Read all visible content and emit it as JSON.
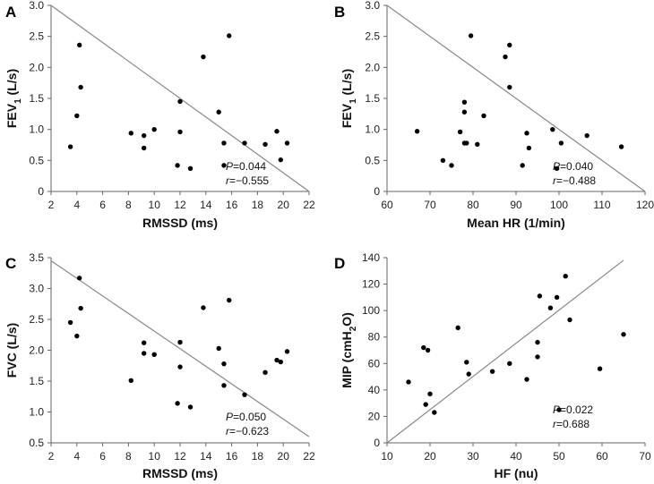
{
  "chart_data": [
    {
      "panel": "A",
      "type": "scatter",
      "xlabel": "RMSSD (ms)",
      "ylabel_main": "FEV",
      "ylabel_sub": "1",
      "ylabel_tail": " (L/s)",
      "xlim": [
        2,
        22
      ],
      "ylim": [
        0,
        3.0
      ],
      "xticks": [
        "2",
        "4",
        "6",
        "8",
        "10",
        "12",
        "14",
        "16",
        "18",
        "20",
        "22"
      ],
      "yticks": [
        "0",
        "0.5",
        "1.0",
        "1.5",
        "2.0",
        "2.5",
        "3.0"
      ],
      "stat_p": "=0.044",
      "stat_r": "=−0.555",
      "fit_line": [
        [
          2,
          3.0
        ],
        [
          22,
          0
        ]
      ],
      "points": [
        [
          3.5,
          0.72
        ],
        [
          4.0,
          1.22
        ],
        [
          4.2,
          2.36
        ],
        [
          4.3,
          1.68
        ],
        [
          8.2,
          0.94
        ],
        [
          9.2,
          0.9
        ],
        [
          9.2,
          0.7
        ],
        [
          10.0,
          1.0
        ],
        [
          11.8,
          0.42
        ],
        [
          12.0,
          0.96
        ],
        [
          12.0,
          1.45
        ],
        [
          12.8,
          0.37
        ],
        [
          13.8,
          2.17
        ],
        [
          15.0,
          1.28
        ],
        [
          15.4,
          0.78
        ],
        [
          15.4,
          0.42
        ],
        [
          15.8,
          2.51
        ],
        [
          17.0,
          0.78
        ],
        [
          18.6,
          0.76
        ],
        [
          19.5,
          0.97
        ],
        [
          19.8,
          0.51
        ],
        [
          20.3,
          0.78
        ]
      ]
    },
    {
      "panel": "B",
      "type": "scatter",
      "xlabel": "Mean HR (1/min)",
      "ylabel_main": "FEV",
      "ylabel_sub": "1",
      "ylabel_tail": " (L/s)",
      "xlim": [
        60,
        120
      ],
      "ylim": [
        0,
        3.0
      ],
      "xticks": [
        "60",
        "70",
        "80",
        "90",
        "100",
        "110",
        "120"
      ],
      "yticks": [
        "0",
        "0.5",
        "1.0",
        "1.5",
        "2.0",
        "2.5",
        "3.0"
      ],
      "stat_p": "=0.040",
      "stat_r": "=−0.488",
      "fit_line": [
        [
          60,
          3.0
        ],
        [
          120,
          0
        ]
      ],
      "points": [
        [
          67.0,
          0.97
        ],
        [
          73.0,
          0.5
        ],
        [
          75.0,
          0.42
        ],
        [
          77.0,
          0.96
        ],
        [
          78.0,
          1.44
        ],
        [
          78.0,
          1.28
        ],
        [
          78.0,
          0.78
        ],
        [
          78.5,
          0.78
        ],
        [
          79.5,
          2.51
        ],
        [
          81.0,
          0.76
        ],
        [
          82.5,
          1.22
        ],
        [
          87.5,
          2.17
        ],
        [
          88.5,
          2.36
        ],
        [
          88.5,
          1.68
        ],
        [
          91.5,
          0.42
        ],
        [
          92.5,
          0.94
        ],
        [
          93.0,
          0.7
        ],
        [
          98.5,
          1.0
        ],
        [
          99.5,
          0.37
        ],
        [
          100.5,
          0.78
        ],
        [
          106.5,
          0.9
        ],
        [
          114.5,
          0.72
        ]
      ]
    },
    {
      "panel": "C",
      "type": "scatter",
      "xlabel": "RMSSD (ms)",
      "ylabel_main": "FVC (L/s)",
      "ylabel_sub": "",
      "ylabel_tail": "",
      "xlim": [
        2,
        22
      ],
      "ylim": [
        0.5,
        3.5
      ],
      "xticks": [
        "2",
        "4",
        "6",
        "8",
        "10",
        "12",
        "14",
        "16",
        "18",
        "20",
        "22"
      ],
      "yticks": [
        "0.5",
        "1.0",
        "1.5",
        "2.0",
        "2.5",
        "3.0",
        "3.5"
      ],
      "stat_p": "=0.050",
      "stat_r": "=−0.623",
      "fit_line": [
        [
          2,
          3.45
        ],
        [
          22,
          0.6
        ]
      ],
      "points": [
        [
          3.5,
          2.45
        ],
        [
          4.0,
          2.23
        ],
        [
          4.2,
          3.17
        ],
        [
          4.3,
          2.68
        ],
        [
          8.2,
          1.51
        ],
        [
          9.2,
          2.12
        ],
        [
          9.2,
          1.95
        ],
        [
          10.0,
          1.93
        ],
        [
          11.8,
          1.14
        ],
        [
          12.0,
          1.73
        ],
        [
          12.0,
          2.13
        ],
        [
          12.8,
          1.08
        ],
        [
          13.8,
          2.69
        ],
        [
          15.0,
          2.03
        ],
        [
          15.4,
          1.78
        ],
        [
          15.4,
          1.43
        ],
        [
          15.8,
          2.81
        ],
        [
          17.0,
          1.28
        ],
        [
          18.6,
          1.64
        ],
        [
          19.5,
          1.84
        ],
        [
          19.8,
          1.81
        ],
        [
          20.3,
          1.98
        ]
      ]
    },
    {
      "panel": "D",
      "type": "scatter",
      "xlabel": "HF (nu)",
      "ylabel_main": "MIP (cmH",
      "ylabel_sub": "2",
      "ylabel_tail": "O)",
      "xlim": [
        10,
        70
      ],
      "ylim": [
        0,
        140
      ],
      "xticks": [
        "10",
        "20",
        "30",
        "40",
        "50",
        "60",
        "70"
      ],
      "yticks": [
        "0",
        "20",
        "40",
        "60",
        "80",
        "100",
        "120",
        "140"
      ],
      "stat_p": "=0.022",
      "stat_r": "=0.688",
      "fit_line": [
        [
          10,
          0
        ],
        [
          65,
          138
        ]
      ],
      "points": [
        [
          15.0,
          46
        ],
        [
          18.5,
          72
        ],
        [
          19.0,
          29
        ],
        [
          19.5,
          70
        ],
        [
          20.0,
          37
        ],
        [
          21.0,
          23
        ],
        [
          26.5,
          87
        ],
        [
          28.5,
          61
        ],
        [
          29.0,
          52
        ],
        [
          34.5,
          54
        ],
        [
          38.5,
          60
        ],
        [
          42.5,
          48
        ],
        [
          45.0,
          65
        ],
        [
          45.0,
          76
        ],
        [
          45.5,
          111
        ],
        [
          48.0,
          102
        ],
        [
          49.5,
          110
        ],
        [
          50.0,
          25
        ],
        [
          51.5,
          126
        ],
        [
          52.5,
          93
        ],
        [
          59.5,
          56
        ],
        [
          65.0,
          82
        ]
      ]
    }
  ]
}
